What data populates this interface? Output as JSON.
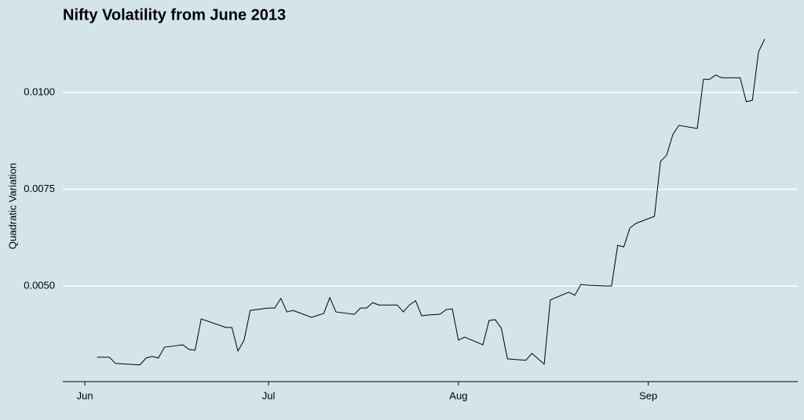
{
  "chart_data": {
    "type": "line",
    "title": "Nifty Volatility from June 2013",
    "y_label": "Quadratic Variation",
    "x": [
      2,
      4,
      5,
      7,
      9,
      10,
      11,
      12,
      13,
      15,
      16,
      17,
      18,
      19,
      23,
      24,
      25,
      26,
      27,
      30,
      31,
      32,
      33,
      34,
      37,
      39,
      40,
      41,
      44,
      45,
      46,
      47,
      48,
      51,
      52,
      53,
      54,
      55,
      56,
      58,
      59,
      60,
      61,
      62,
      65,
      66,
      67,
      68,
      69,
      72,
      73,
      75,
      76,
      79,
      80,
      81,
      82,
      85,
      86,
      87,
      88,
      89,
      90,
      93,
      94,
      95,
      96,
      97,
      100,
      101,
      102,
      103,
      104,
      107,
      108,
      109,
      110,
      111
    ],
    "series": [
      {
        "name": "Quadratic Variation",
        "color": "#000000",
        "values": [
          0.00316,
          0.00316,
          0.003,
          0.00298,
          0.00296,
          0.00314,
          0.00318,
          0.00314,
          0.00342,
          0.00346,
          0.00348,
          0.00336,
          0.00334,
          0.00415,
          0.00393,
          0.00393,
          0.00332,
          0.0036,
          0.00437,
          0.00443,
          0.00443,
          0.00468,
          0.00433,
          0.00437,
          0.00419,
          0.00429,
          0.0047,
          0.00433,
          0.00427,
          0.00443,
          0.00443,
          0.00457,
          0.00451,
          0.00451,
          0.00433,
          0.00451,
          0.00462,
          0.00423,
          0.00425,
          0.00427,
          0.00439,
          0.00441,
          0.0036,
          0.00368,
          0.00348,
          0.00411,
          0.00413,
          0.00391,
          0.00312,
          0.00308,
          0.00326,
          0.00298,
          0.00464,
          0.00484,
          0.00476,
          0.00504,
          0.00502,
          0.005,
          0.005,
          0.00605,
          0.00601,
          0.0065,
          0.00662,
          0.0068,
          0.00822,
          0.00838,
          0.00891,
          0.00915,
          0.00907,
          0.01034,
          0.01034,
          0.01045,
          0.01038,
          0.01038,
          0.00976,
          0.0098,
          0.01105,
          0.01138
        ]
      }
    ],
    "xlim": [
      -3.6,
      116.4
    ],
    "xticks": [
      {
        "value": 0,
        "label": "Jun"
      },
      {
        "value": 30,
        "label": "Jul"
      },
      {
        "value": 61,
        "label": "Aug"
      },
      {
        "value": 92,
        "label": "Sep"
      }
    ],
    "ylim": [
      0.00253,
      0.0116
    ],
    "yticks": [
      {
        "value": 0.005,
        "label": "0.0050"
      },
      0.0075,
      {
        "value": 0.01,
        "label": "0.0100"
      }
    ],
    "grid": true
  }
}
